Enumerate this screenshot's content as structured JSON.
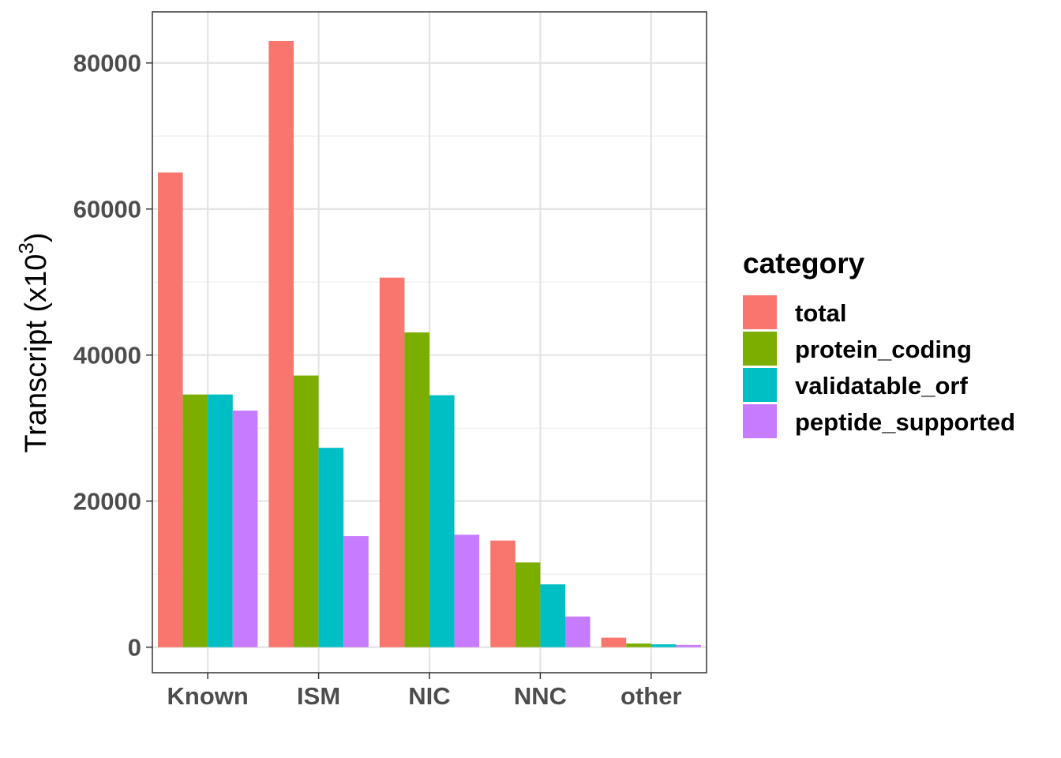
{
  "chart_data": {
    "type": "bar",
    "title": "",
    "xlabel": "",
    "ylabel_main": "Transcript (x10",
    "ylabel_exp": "3",
    "ylabel_close": ")",
    "categories": [
      "Known",
      "ISM",
      "NIC",
      "NNC",
      "other"
    ],
    "ylim": [
      -3500,
      87000
    ],
    "yticks": [
      0,
      20000,
      40000,
      60000,
      80000
    ],
    "ytick_labels": [
      "0",
      "20000",
      "40000",
      "60000",
      "80000"
    ],
    "grid": true,
    "legend_title": "category",
    "legend_position": "right",
    "series": [
      {
        "name": "total",
        "color": "#F8766D",
        "values": [
          65000,
          83000,
          50600,
          14600,
          1300
        ]
      },
      {
        "name": "protein_coding",
        "color": "#7CAE00",
        "values": [
          34600,
          37200,
          43100,
          11600,
          500
        ]
      },
      {
        "name": "validatable_orf",
        "color": "#00BFC4",
        "values": [
          34600,
          27300,
          34500,
          8600,
          400
        ]
      },
      {
        "name": "peptide_supported",
        "color": "#C77CFF",
        "values": [
          32400,
          15200,
          15400,
          4200,
          300
        ]
      }
    ]
  }
}
